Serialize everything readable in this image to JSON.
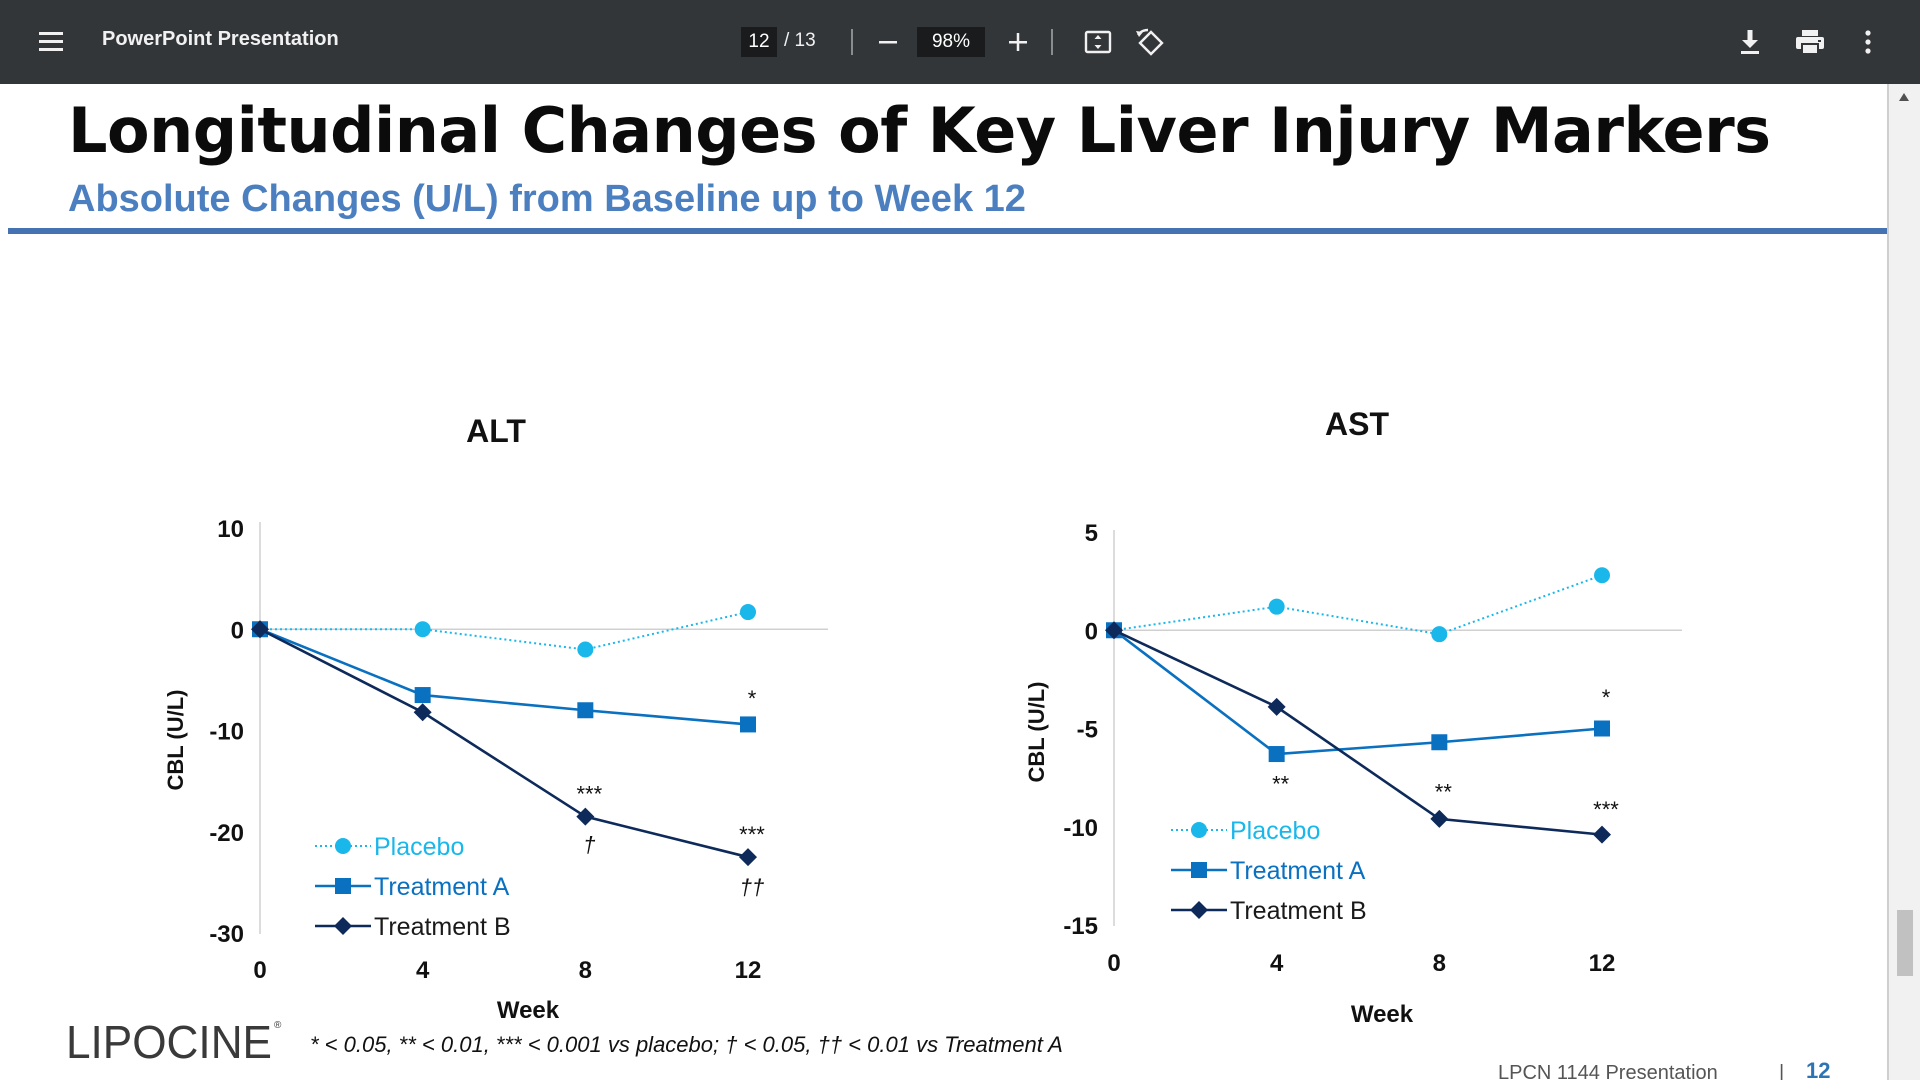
{
  "toolbar": {
    "title": "PowerPoint Presentation",
    "current_page": "12",
    "page_total": "/ 13",
    "zoom": "98%",
    "icons": [
      "menu-icon",
      "zoom-out-icon",
      "zoom-in-icon",
      "fit-page-icon",
      "rotate-icon",
      "download-icon",
      "print-icon",
      "more-icon"
    ]
  },
  "slide": {
    "title": "Longitudinal Changes of Key Liver Injury Markers",
    "subtitle": "Absolute Changes (U/L) from Baseline up to Week 12",
    "footnote": "* < 0.05, ** < 0.01, *** < 0.001 vs placebo; † < 0.05, †† < 0.01 vs Treatment A",
    "logo_text": "LIPOCINE",
    "footer_text": "LPCN 1144 Presentation",
    "footer_sep": "|",
    "footer_page": "12",
    "colors": {
      "title_rule": "#4573b2",
      "subtitle": "#4c7fbf",
      "placebo": "#1ab7ea",
      "treatment_a": "#0a70c0",
      "treatment_b": "#0e2a5a"
    }
  },
  "chart_data": [
    {
      "type": "line",
      "title": "ALT",
      "xlabel": "Week",
      "ylabel": "CBL (U/L)",
      "x": [
        0,
        4,
        8,
        12
      ],
      "xticks": [
        "0",
        "4",
        "8",
        "12"
      ],
      "yticks": [
        "10",
        "0",
        "-10",
        "-20",
        "-30"
      ],
      "ytick_values": [
        10,
        0,
        -10,
        -20,
        -30
      ],
      "ylim": [
        -30,
        10
      ],
      "series": [
        {
          "name": "Placebo",
          "style": "dotted",
          "marker": "circle",
          "values": [
            0,
            0,
            -2,
            1.7
          ]
        },
        {
          "name": "Treatment A",
          "style": "solid",
          "marker": "square",
          "values": [
            0,
            -6.5,
            -8,
            -9.4
          ]
        },
        {
          "name": "Treatment B",
          "style": "solid",
          "marker": "diamond",
          "values": [
            0,
            -8.2,
            -18.5,
            -22.5
          ]
        }
      ],
      "annotations": [
        {
          "text": "*",
          "x": 12,
          "y": -6.8
        },
        {
          "text": "***",
          "x": 8,
          "y": -16.2
        },
        {
          "text": "†",
          "x": 8,
          "y": -21.2
        },
        {
          "text": "***",
          "x": 12,
          "y": -20.2
        },
        {
          "text": "††",
          "x": 12,
          "y": -25.4
        }
      ],
      "legend": "bottom-left"
    },
    {
      "type": "line",
      "title": "AST",
      "xlabel": "Week",
      "ylabel": "CBL (U/L)",
      "x": [
        0,
        4,
        8,
        12
      ],
      "xticks": [
        "0",
        "4",
        "8",
        "12"
      ],
      "yticks": [
        "5",
        "0",
        "-5",
        "-10",
        "-15"
      ],
      "ytick_values": [
        5,
        0,
        -5,
        -10,
        -15
      ],
      "ylim": [
        -15,
        5
      ],
      "series": [
        {
          "name": "Placebo",
          "style": "dotted",
          "marker": "circle",
          "values": [
            0,
            1.2,
            -0.2,
            2.8
          ]
        },
        {
          "name": "Treatment A",
          "style": "solid",
          "marker": "square",
          "values": [
            0,
            -6.3,
            -5.7,
            -5.0
          ]
        },
        {
          "name": "Treatment B",
          "style": "solid",
          "marker": "diamond",
          "values": [
            0,
            -3.9,
            -9.6,
            -10.4
          ]
        }
      ],
      "annotations": [
        {
          "text": "**",
          "x": 4,
          "y": -7.8
        },
        {
          "text": "*",
          "x": 12,
          "y": -3.4
        },
        {
          "text": "**",
          "x": 8,
          "y": -8.2
        },
        {
          "text": "***",
          "x": 12,
          "y": -9.1
        }
      ],
      "legend": "bottom-left"
    }
  ]
}
